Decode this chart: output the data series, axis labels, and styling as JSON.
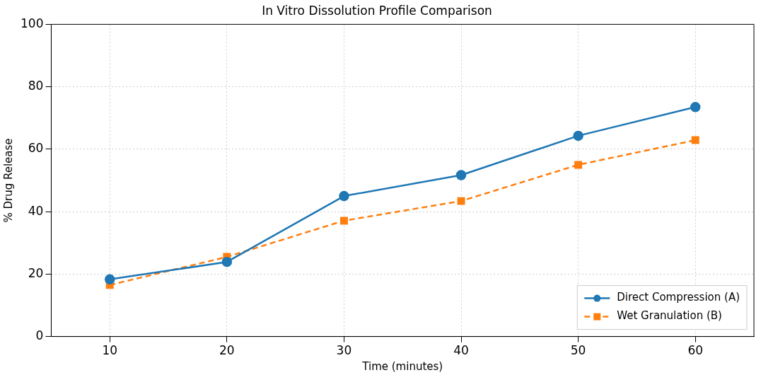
{
  "chart_data": {
    "type": "line",
    "title": "In Vitro Dissolution Profile Comparison",
    "xlabel": "Time (minutes)",
    "ylabel": "% Drug Release",
    "x": [
      10,
      20,
      30,
      40,
      50,
      60
    ],
    "series": [
      {
        "name": "Direct Compression (A)",
        "color": "#1f77b4",
        "values": [
          18.3,
          23.9,
          45,
          51.7,
          64.3,
          73.5
        ],
        "marker": "circle",
        "line_style": "solid"
      },
      {
        "name": "Wet Granulation (B)",
        "color": "#ff7f0e",
        "values": [
          16.5,
          25.5,
          37.1,
          43.4,
          55,
          62.9
        ],
        "marker": "square",
        "line_style": "dashed"
      }
    ],
    "xlim": [
      5,
      65
    ],
    "xticks": [
      10,
      20,
      30,
      40,
      50,
      60
    ],
    "ylim": [
      0,
      100
    ],
    "yticks": [
      0,
      20,
      40,
      60,
      80,
      100
    ],
    "grid": true,
    "legend": "bottom right"
  }
}
